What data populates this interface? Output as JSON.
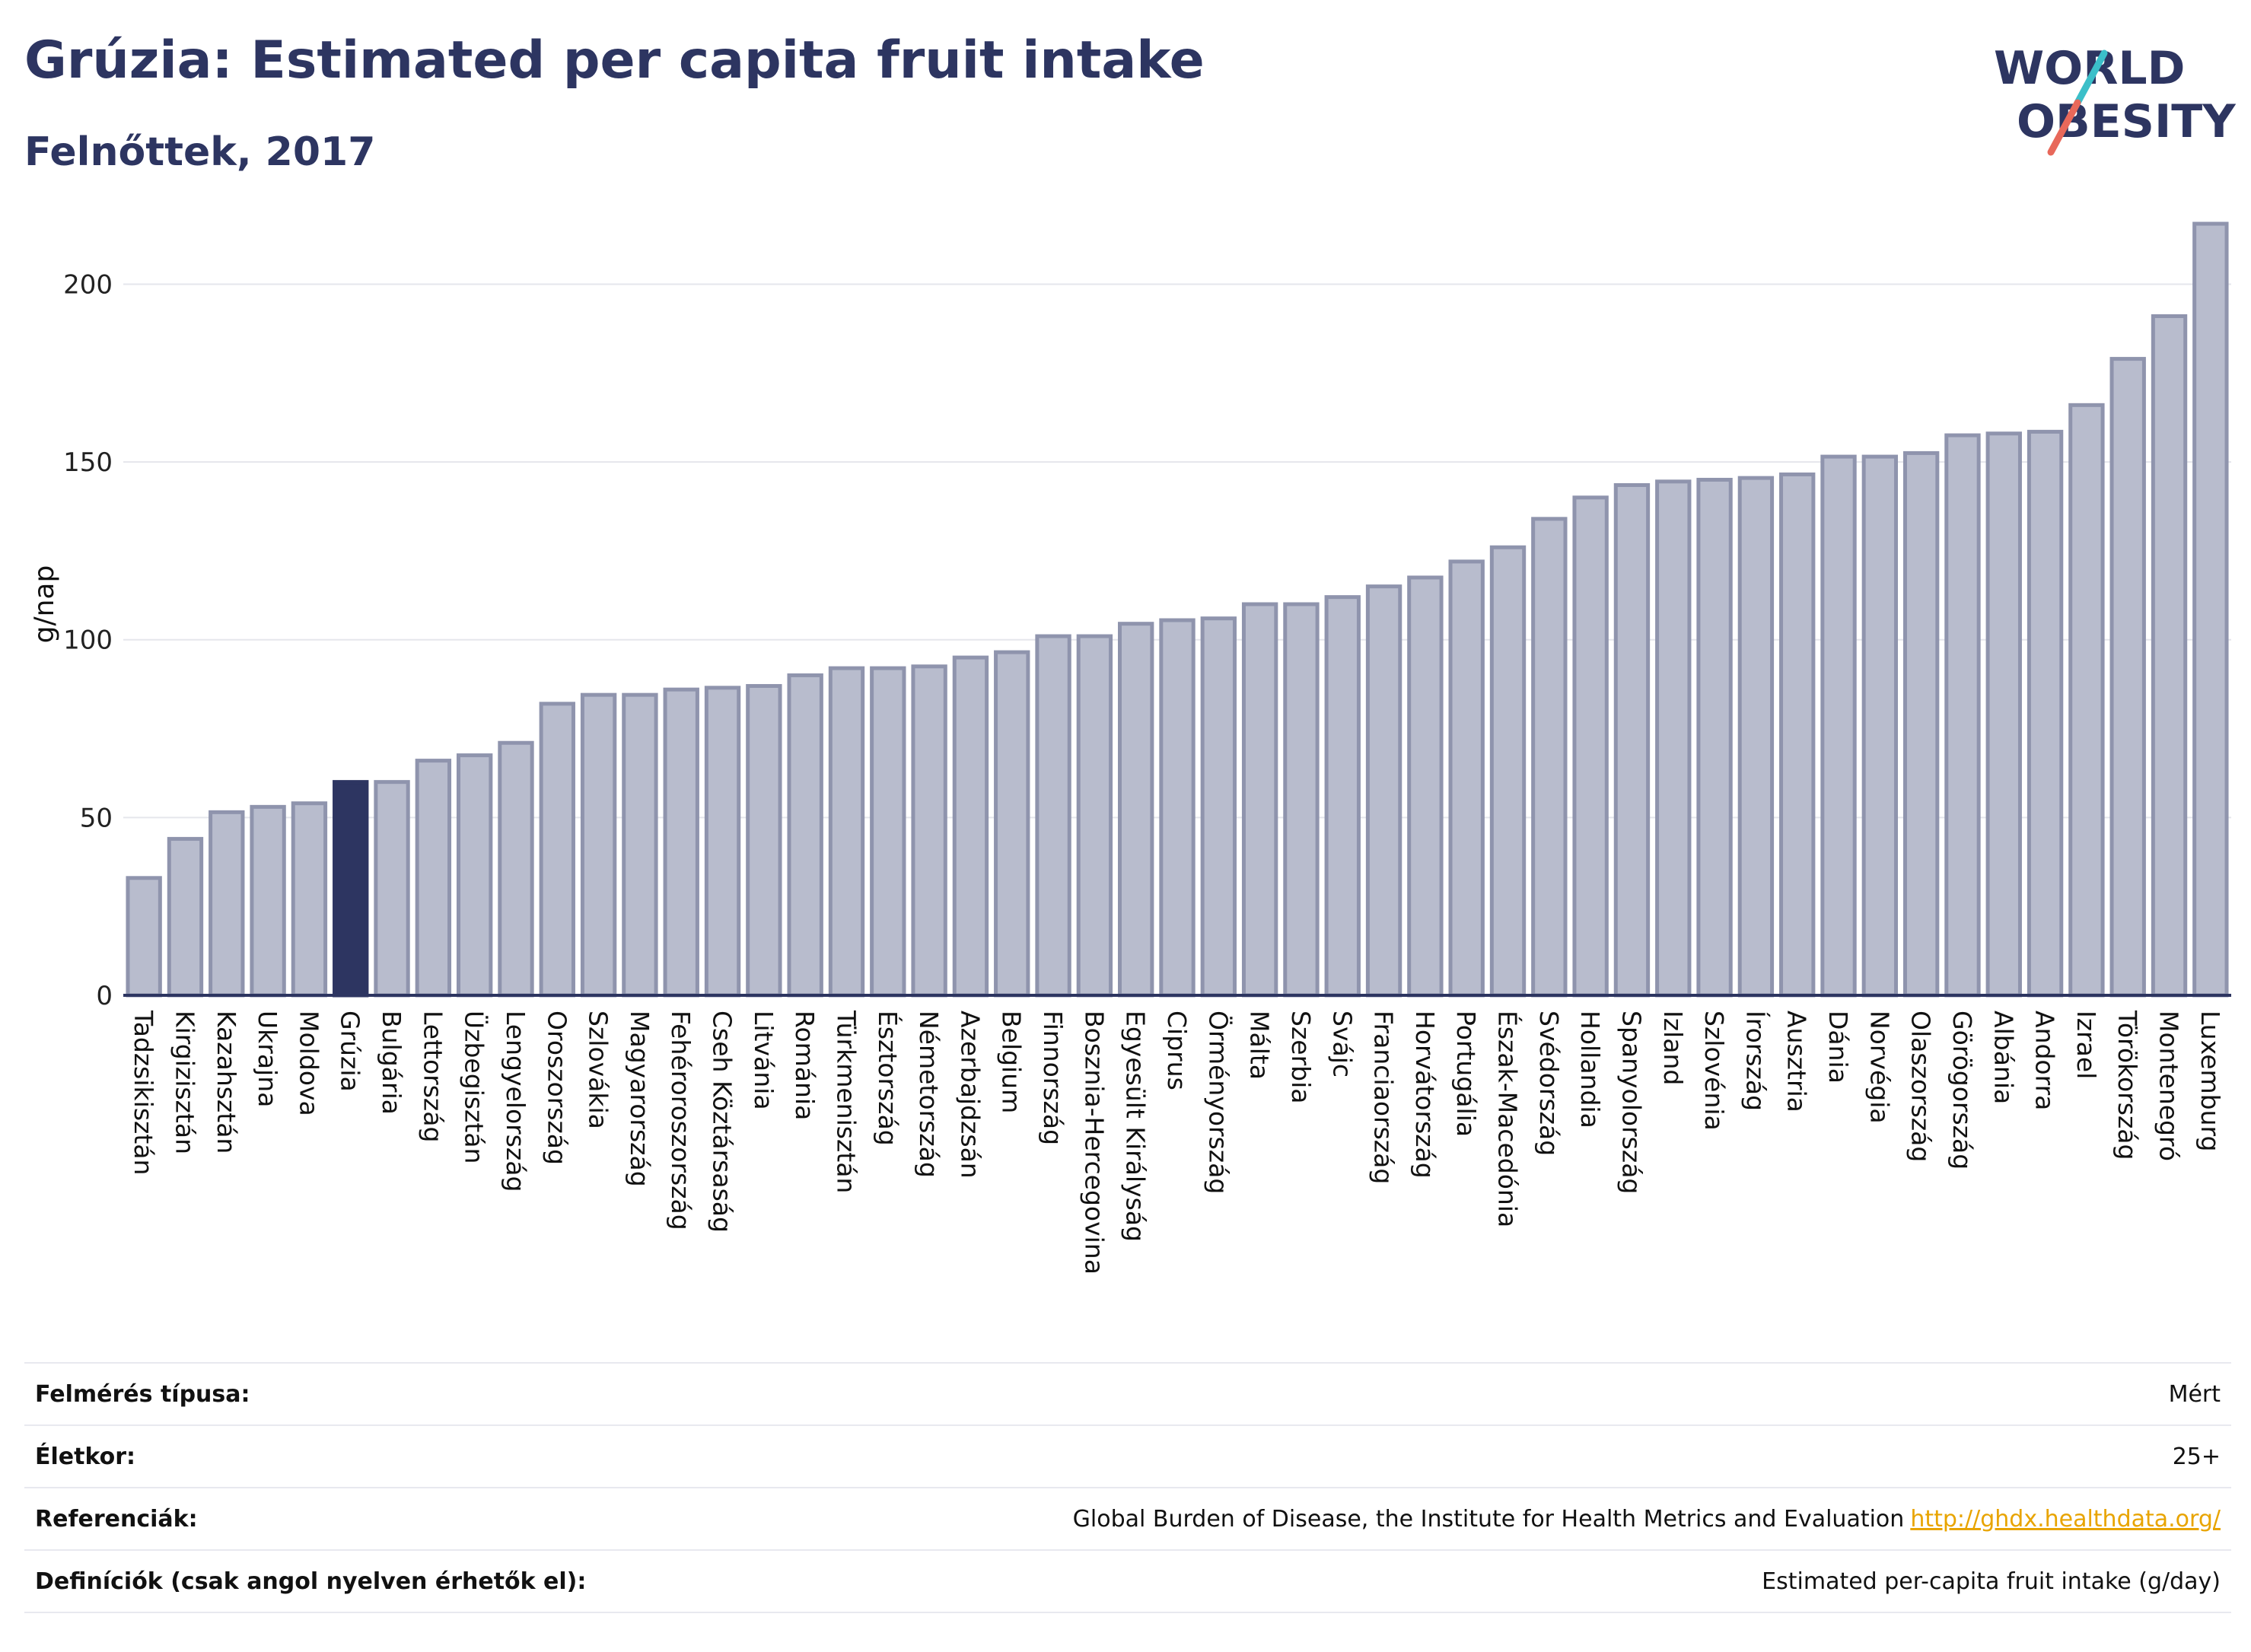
{
  "header": {
    "title": "Grúzia: Estimated per capita fruit intake",
    "subtitle": "Felnőttek, 2017"
  },
  "logo": {
    "line1": "WORLD",
    "line2": "OBESITY"
  },
  "colors": {
    "bar": "#b8bccd",
    "bar_border": "#8f94ad",
    "highlight": "#2d3561",
    "title": "#2d3561",
    "grid": "#e5e6ec",
    "logo_slash_teal": "#3bbfc9",
    "logo_slash_red": "#e8685a"
  },
  "chart_data": {
    "type": "bar",
    "ylabel": "g/nap",
    "ylim": [
      0,
      220
    ],
    "yticks": [
      0,
      50,
      100,
      150,
      200
    ],
    "grid": true,
    "highlight": "Grúzia",
    "categories": [
      "Tadzsikisztán",
      "Kirgizisztán",
      "Kazahsztán",
      "Ukrajna",
      "Moldova",
      "Grúzia",
      "Bulgária",
      "Lettország",
      "Üzbegisztán",
      "Lengyelország",
      "Oroszország",
      "Szlovákia",
      "Magyarország",
      "Fehéroroszország",
      "Cseh Köztársaság",
      "Litvánia",
      "Románia",
      "Türkmenisztán",
      "Észtország",
      "Németország",
      "Azerbajdzsán",
      "Belgium",
      "Finnország",
      "Bosznia-Hercegovina",
      "Egyesült Királyság",
      "Ciprus",
      "Örményország",
      "Málta",
      "Szerbia",
      "Svájc",
      "Franciaország",
      "Horvátország",
      "Portugália",
      "Észak-Macedónia",
      "Svédország",
      "Hollandia",
      "Spanyolország",
      "Izland",
      "Szlovénia",
      "Írország",
      "Ausztria",
      "Dánia",
      "Norvégia",
      "Olaszország",
      "Görögország",
      "Albánia",
      "Andorra",
      "Izrael",
      "Törökország",
      "Montenegró",
      "Luxemburg"
    ],
    "values": [
      33,
      44,
      51.5,
      53,
      54,
      60,
      60,
      66,
      67.5,
      71,
      82,
      84.5,
      84.5,
      86,
      86.5,
      87,
      90,
      92,
      92,
      92.5,
      95,
      96.5,
      101,
      101,
      104.5,
      105.5,
      106,
      110,
      110,
      112,
      115,
      117.5,
      122,
      126,
      134,
      140,
      143.5,
      144.5,
      145,
      145.5,
      146.5,
      151.5,
      151.5,
      152.5,
      157.5,
      158,
      158.5,
      166,
      179,
      191,
      217
    ]
  },
  "meta": [
    {
      "label": "Felmérés típusa:",
      "value": "Mért"
    },
    {
      "label": "Életkor:",
      "value": "25+"
    },
    {
      "label": "Referenciák:",
      "value": "Global Burden of Disease, the Institute for Health Metrics and Evaluation",
      "link": "http://ghdx.healthdata.org/"
    },
    {
      "label": "Definíciók (csak angol nyelven érhetők el):",
      "value": "Estimated per-capita fruit intake (g/day)"
    }
  ]
}
